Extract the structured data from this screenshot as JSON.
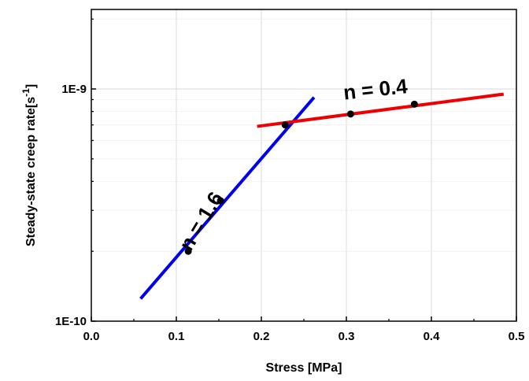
{
  "chart_data": {
    "type": "scatter",
    "xlabel": "Stress [MPa]",
    "ylabel_main": "Steady-state creep rate[s",
    "ylabel_sup": "-1",
    "ylabel_close": "]",
    "xlim": [
      0.0,
      0.5
    ],
    "ylim": [
      1e-10,
      2.2e-09
    ],
    "yscale": "log",
    "grid": true,
    "x_ticks": [
      {
        "value": 0.0,
        "label": "0.0"
      },
      {
        "value": 0.1,
        "label": "0.1"
      },
      {
        "value": 0.2,
        "label": "0.2"
      },
      {
        "value": 0.3,
        "label": "0.3"
      },
      {
        "value": 0.4,
        "label": "0.4"
      },
      {
        "value": 0.5,
        "label": "0.5"
      }
    ],
    "y_ticks": [
      {
        "value": 1e-10,
        "label": "1E-10"
      },
      {
        "value": 1e-09,
        "label": "1E-9"
      }
    ],
    "points": [
      {
        "x": 0.114,
        "y": 2e-10
      },
      {
        "x": 0.152,
        "y": 3.3e-10
      },
      {
        "x": 0.228,
        "y": 7e-10
      },
      {
        "x": 0.305,
        "y": 7.8e-10
      },
      {
        "x": 0.38,
        "y": 8.6e-10
      }
    ],
    "fit_lines": [
      {
        "color": "#0000ee",
        "x": [
          0.058,
          0.262
        ],
        "y": [
          1.25e-10,
          9.2e-10
        ]
      },
      {
        "color": "#ee0000",
        "x": [
          0.195,
          0.485
        ],
        "y": [
          6.9e-10,
          9.5e-10
        ]
      }
    ],
    "annotations": [
      {
        "text": "n = 1.6",
        "x": 0.136,
        "y": 2.6e-10,
        "rotate": -59
      },
      {
        "text": "n = 0.4",
        "x": 0.335,
        "y": 9.3e-10,
        "rotate": -6
      }
    ]
  }
}
